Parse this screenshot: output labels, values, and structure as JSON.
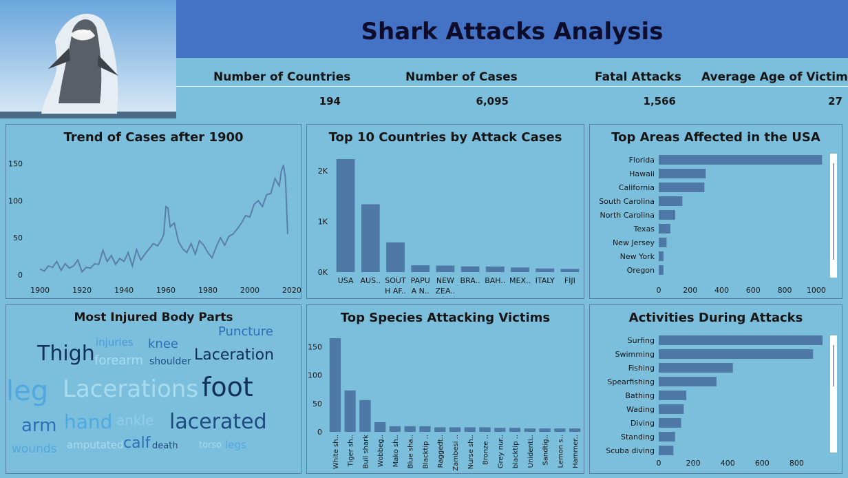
{
  "header": {
    "title": "Shark Attacks Analysis"
  },
  "kpis": [
    {
      "label": "Number of Countries",
      "value": "194"
    },
    {
      "label": "Number of Cases",
      "value": "6,095"
    },
    {
      "label": "Fatal Attacks",
      "value": "1,566"
    },
    {
      "label": "Average Age of Victims",
      "value": "27"
    }
  ],
  "panels": {
    "trend": "Trend of Cases after 1900",
    "countries": "Top 10 Countries by Attack Cases",
    "usa": "Top Areas Affected in the USA",
    "body": "Most Injured Body Parts",
    "species": "Top Species Attacking Victims",
    "activities": "Activities During Attacks"
  },
  "colors": {
    "bar": "#4e79a7",
    "line": "#5a7eab",
    "bg": "#7cbfdc",
    "header": "#4472c4"
  },
  "chart_data": [
    {
      "type": "line",
      "title": "Trend of Cases after 1900",
      "x": [
        1900,
        1902,
        1904,
        1906,
        1908,
        1910,
        1912,
        1914,
        1916,
        1918,
        1920,
        1922,
        1924,
        1926,
        1928,
        1930,
        1932,
        1934,
        1936,
        1938,
        1940,
        1942,
        1944,
        1946,
        1948,
        1950,
        1952,
        1954,
        1956,
        1958,
        1959,
        1960,
        1961,
        1962,
        1964,
        1966,
        1968,
        1970,
        1972,
        1974,
        1976,
        1978,
        1980,
        1982,
        1984,
        1986,
        1988,
        1990,
        1992,
        1994,
        1996,
        1998,
        2000,
        2002,
        2004,
        2006,
        2008,
        2010,
        2012,
        2014,
        2015,
        2016,
        2017,
        2018
      ],
      "y": [
        8,
        5,
        12,
        10,
        18,
        6,
        15,
        9,
        12,
        20,
        4,
        10,
        9,
        15,
        14,
        33,
        18,
        26,
        14,
        22,
        18,
        30,
        12,
        34,
        20,
        28,
        35,
        42,
        39,
        48,
        55,
        92,
        90,
        65,
        70,
        45,
        35,
        30,
        42,
        28,
        46,
        40,
        30,
        23,
        38,
        50,
        40,
        52,
        55,
        62,
        70,
        80,
        78,
        95,
        100,
        92,
        108,
        110,
        130,
        120,
        140,
        148,
        130,
        55
      ],
      "xticks": [
        1900,
        1920,
        1940,
        1960,
        1980,
        2000,
        2020
      ],
      "yticks": [
        0,
        50,
        100,
        150
      ],
      "xlim": [
        1897,
        2021
      ],
      "ylim": [
        0,
        158
      ]
    },
    {
      "type": "bar",
      "title": "Top 10 Countries by Attack Cases",
      "categories": [
        "USA",
        "AUS..",
        "SOUTH AF..",
        "PAPUAN..",
        "NEW ZEA..",
        "BRA..",
        "BAH..",
        "MEX..",
        "ITALY",
        "FIJI"
      ],
      "category_lines": [
        [
          "USA"
        ],
        [
          "AUS.."
        ],
        [
          "SOUT",
          "H AF.."
        ],
        [
          "PAPU",
          "A N.."
        ],
        [
          "NEW",
          "ZEA.."
        ],
        [
          "BRA.."
        ],
        [
          "BAH.."
        ],
        [
          "MEX.."
        ],
        [
          "ITALY"
        ],
        [
          "FIJI"
        ]
      ],
      "values": [
        2229,
        1338,
        585,
        134,
        128,
        112,
        109,
        90,
        71,
        62
      ],
      "yticks": [
        0,
        1000,
        2000
      ],
      "ytick_labels": [
        "0K",
        "1K",
        "2K"
      ],
      "ylim": [
        0,
        2229
      ]
    },
    {
      "type": "bar",
      "orientation": "horizontal",
      "title": "Top Areas Affected in the USA",
      "categories": [
        "Florida",
        "Hawaii",
        "California",
        "South Carolina",
        "North Carolina",
        "Texas",
        "New Jersey",
        "New York",
        "Oregon"
      ],
      "values": [
        1037,
        298,
        290,
        150,
        105,
        74,
        50,
        30,
        30
      ],
      "xticks": [
        0,
        200,
        400,
        600,
        800,
        1000
      ],
      "xlim": [
        0,
        1040
      ]
    },
    {
      "type": "bar",
      "title": "Top Species Attacking Victims",
      "categories": [
        "White sh..",
        "Tiger sh..",
        "Bull shark",
        "Wobbeg..",
        "Mako sh..",
        "Blue sha..",
        "Blacktip ..",
        "Raggedt..",
        "Zambesi ..",
        "Nurse sh..",
        "Bronze ..",
        "Grey nur..",
        "blacktip ..",
        "Unidenti..",
        "Sandtig..",
        "Lemon s..",
        "Hammer.."
      ],
      "values": [
        165,
        73,
        56,
        17,
        10,
        10,
        10,
        8,
        8,
        8,
        8,
        7,
        7,
        6,
        6,
        6,
        6
      ],
      "yticks": [
        0,
        50,
        100,
        150
      ],
      "ylim": [
        0,
        165
      ]
    },
    {
      "type": "bar",
      "orientation": "horizontal",
      "title": "Activities During Attacks",
      "categories": [
        "Surfing",
        "Swimming",
        "Fishing",
        "Spearfishing",
        "Bathing",
        "Wading",
        "Diving",
        "Standing",
        "Scuba diving"
      ],
      "values": [
        950,
        895,
        430,
        335,
        160,
        145,
        130,
        95,
        85
      ],
      "xticks": [
        0,
        200,
        400,
        600,
        800
      ],
      "xlim": [
        0,
        950
      ]
    }
  ],
  "word_cloud": [
    {
      "text": "Puncture",
      "size": 18,
      "color": "#2a6fb8"
    },
    {
      "text": "injuries",
      "size": 15,
      "color": "#4a9ad8"
    },
    {
      "text": "knee",
      "size": 18,
      "color": "#2a6fb8"
    },
    {
      "text": "Thigh",
      "size": 30,
      "color": "#13305a"
    },
    {
      "text": "forearm",
      "size": 18,
      "color": "#a8dcef"
    },
    {
      "text": "shoulder",
      "size": 14,
      "color": "#1e4a80"
    },
    {
      "text": "Laceration",
      "size": 22,
      "color": "#13305a"
    },
    {
      "text": "leg",
      "size": 40,
      "color": "#4fa8e0"
    },
    {
      "text": "Lacerations",
      "size": 34,
      "color": "#a8dcef"
    },
    {
      "text": "foot",
      "size": 38,
      "color": "#13305a"
    },
    {
      "text": "arm",
      "size": 26,
      "color": "#2a6fb8"
    },
    {
      "text": "hand",
      "size": 28,
      "color": "#4fa8e0"
    },
    {
      "text": "ankle",
      "size": 20,
      "color": "#8fd0ea"
    },
    {
      "text": "lacerated",
      "size": 30,
      "color": "#1e4a80"
    },
    {
      "text": "wounds",
      "size": 17,
      "color": "#4fa8e0"
    },
    {
      "text": "amputated",
      "size": 15,
      "color": "#a8dcef"
    },
    {
      "text": "calf",
      "size": 22,
      "color": "#2a6fb8"
    },
    {
      "text": "death",
      "size": 13,
      "color": "#1e4a80"
    },
    {
      "text": "torso",
      "size": 13,
      "color": "#a8dcef"
    },
    {
      "text": "legs",
      "size": 15,
      "color": "#4fa8e0"
    }
  ]
}
